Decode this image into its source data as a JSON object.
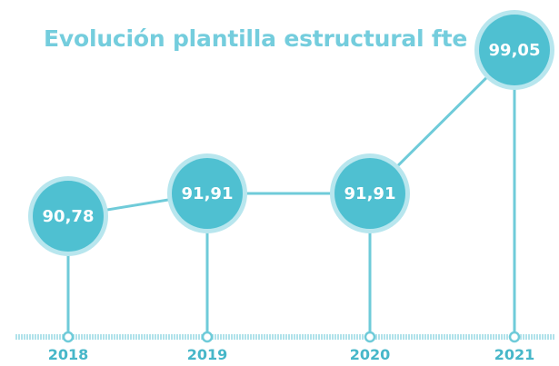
{
  "chart_data": {
    "type": "line",
    "title": "Evolución plantilla estructural fte",
    "categories": [
      "2018",
      "2019",
      "2020",
      "2021"
    ],
    "series": [
      {
        "values": [
          90.78,
          91.91,
          91.91,
          99.05
        ]
      }
    ],
    "value_labels": [
      "90,78",
      "91,91",
      "91,91",
      "99,05"
    ],
    "colors": {
      "title": "#74cddd",
      "circle_fill": "#4fc0d1",
      "circle_ring": "#b8e6ee",
      "line": "#6fcbd9",
      "axis_text": "#47b7c9",
      "axis_ticks": "#8fd6e1"
    }
  }
}
